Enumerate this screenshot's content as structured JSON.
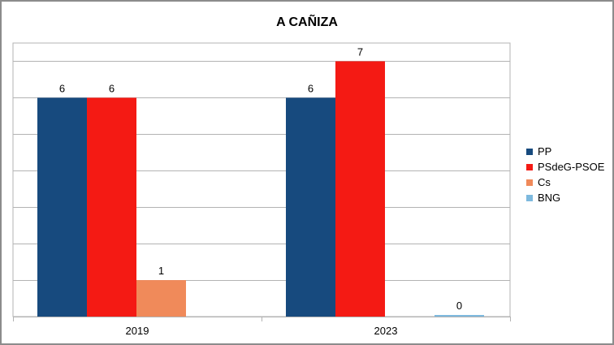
{
  "chart_data": {
    "type": "bar",
    "title": "A CAÑIZA",
    "xlabel": "",
    "ylabel": "",
    "categories": [
      "2019",
      "2023"
    ],
    "ylim": [
      0,
      7.5
    ],
    "grid": true,
    "legend_position": "right",
    "series": [
      {
        "name": "PP",
        "color": "#174A7E",
        "values": [
          6,
          6
        ]
      },
      {
        "name": "PSdeG-PSOE",
        "color": "#F41A14",
        "values": [
          6,
          7
        ]
      },
      {
        "name": "Cs",
        "color": "#F08A5A",
        "values": [
          1,
          null
        ]
      },
      {
        "name": "BNG",
        "color": "#7DB9DE",
        "values": [
          null,
          0
        ]
      }
    ]
  }
}
